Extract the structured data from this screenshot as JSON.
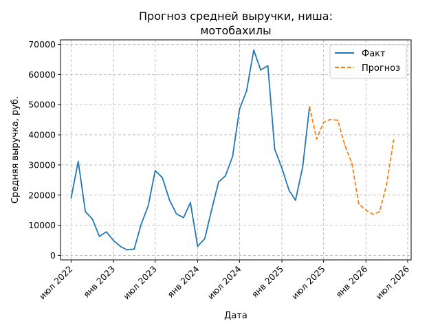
{
  "chart_data": {
    "type": "line",
    "title_lines": [
      "Прогноз средней выручки, ниша:",
      "мотобахилы"
    ],
    "xlabel": "Дата",
    "ylabel": "Средняя выручка, руб.",
    "x_ticks": [
      {
        "date": "2022-07-01",
        "label": "июл 2022"
      },
      {
        "date": "2023-01-01",
        "label": "янв 2023"
      },
      {
        "date": "2023-07-01",
        "label": "июл 2023"
      },
      {
        "date": "2024-01-01",
        "label": "янв 2024"
      },
      {
        "date": "2024-07-01",
        "label": "июл 2024"
      },
      {
        "date": "2025-01-01",
        "label": "янв 2025"
      },
      {
        "date": "2025-07-01",
        "label": "июл 2025"
      },
      {
        "date": "2026-01-01",
        "label": "янв 2026"
      },
      {
        "date": "2026-07-01",
        "label": "июл 2026"
      }
    ],
    "y_ticks": [
      0,
      10000,
      20000,
      30000,
      40000,
      50000,
      60000,
      70000
    ],
    "ylim": [
      -1500,
      71500
    ],
    "xlim": [
      "2022-05-16",
      "2026-07-16"
    ],
    "grid": true,
    "legend_position": "top-right",
    "series": [
      {
        "name": "Факт",
        "color": "#1f77b4",
        "style": "solid",
        "points": [
          {
            "x": "2022-07-01",
            "y": 19000
          },
          {
            "x": "2022-08-01",
            "y": 31200
          },
          {
            "x": "2022-09-01",
            "y": 14500
          },
          {
            "x": "2022-10-01",
            "y": 12100
          },
          {
            "x": "2022-11-01",
            "y": 6300
          },
          {
            "x": "2022-12-01",
            "y": 7800
          },
          {
            "x": "2023-01-01",
            "y": 4900
          },
          {
            "x": "2023-02-01",
            "y": 2900
          },
          {
            "x": "2023-03-01",
            "y": 1800
          },
          {
            "x": "2023-04-01",
            "y": 2100
          },
          {
            "x": "2023-05-01",
            "y": 10300
          },
          {
            "x": "2023-06-01",
            "y": 16500
          },
          {
            "x": "2023-07-01",
            "y": 28100
          },
          {
            "x": "2023-08-01",
            "y": 25800
          },
          {
            "x": "2023-09-01",
            "y": 18400
          },
          {
            "x": "2023-10-01",
            "y": 13800
          },
          {
            "x": "2023-11-01",
            "y": 12500
          },
          {
            "x": "2023-12-01",
            "y": 17500
          },
          {
            "x": "2024-01-01",
            "y": 3000
          },
          {
            "x": "2024-02-01",
            "y": 5500
          },
          {
            "x": "2024-03-01",
            "y": 14800
          },
          {
            "x": "2024-04-01",
            "y": 24300
          },
          {
            "x": "2024-05-01",
            "y": 26400
          },
          {
            "x": "2024-06-01",
            "y": 32800
          },
          {
            "x": "2024-07-01",
            "y": 48500
          },
          {
            "x": "2024-08-01",
            "y": 54600
          },
          {
            "x": "2024-09-01",
            "y": 68100
          },
          {
            "x": "2024-10-01",
            "y": 61500
          },
          {
            "x": "2024-11-01",
            "y": 62900
          },
          {
            "x": "2024-12-01",
            "y": 35200
          },
          {
            "x": "2025-01-01",
            "y": 29000
          },
          {
            "x": "2025-02-01",
            "y": 21600
          },
          {
            "x": "2025-03-01",
            "y": 18300
          },
          {
            "x": "2025-04-01",
            "y": 29200
          },
          {
            "x": "2025-05-01",
            "y": 49300
          }
        ]
      },
      {
        "name": "Прогноз",
        "color": "#ff7f0e",
        "style": "dashed",
        "points": [
          {
            "x": "2025-05-01",
            "y": 49300
          },
          {
            "x": "2025-06-01",
            "y": 38600
          },
          {
            "x": "2025-07-01",
            "y": 44200
          },
          {
            "x": "2025-08-01",
            "y": 45100
          },
          {
            "x": "2025-09-01",
            "y": 44800
          },
          {
            "x": "2025-10-01",
            "y": 36600
          },
          {
            "x": "2025-11-01",
            "y": 30500
          },
          {
            "x": "2025-12-01",
            "y": 17000
          },
          {
            "x": "2026-01-01",
            "y": 15000
          },
          {
            "x": "2026-02-01",
            "y": 13600
          },
          {
            "x": "2026-03-01",
            "y": 14500
          },
          {
            "x": "2026-04-01",
            "y": 23700
          },
          {
            "x": "2026-05-01",
            "y": 38300
          }
        ]
      }
    ]
  }
}
